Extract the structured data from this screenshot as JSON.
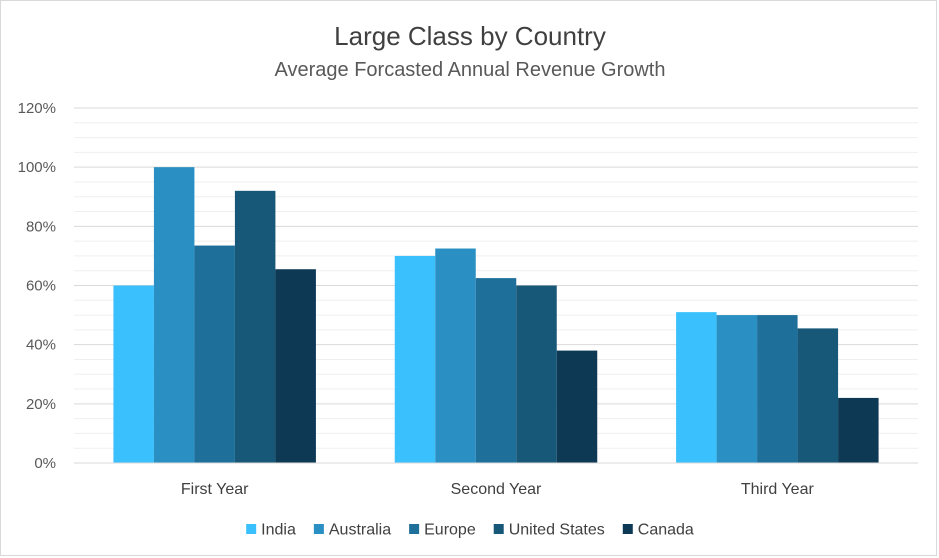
{
  "chart_data": {
    "type": "bar",
    "title": "Large Class by Country",
    "subtitle": "Average Forcasted Annual Revenue Growth",
    "categories": [
      "First Year",
      "Second Year",
      "Third Year"
    ],
    "series": [
      {
        "name": "India",
        "color": "#3ac1fd",
        "values": [
          60,
          70,
          51
        ]
      },
      {
        "name": "Australia",
        "color": "#2a8fc2",
        "values": [
          100,
          72.5,
          50
        ]
      },
      {
        "name": "Europe",
        "color": "#1f6f9b",
        "values": [
          73.5,
          62.5,
          50
        ]
      },
      {
        "name": "United States",
        "color": "#175778",
        "values": [
          92,
          60,
          45.5
        ]
      },
      {
        "name": "Canada",
        "color": "#0e3955",
        "values": [
          65.5,
          38,
          22
        ]
      }
    ],
    "ylim": [
      0,
      120
    ],
    "yticks": [
      "0%",
      "20%",
      "40%",
      "60%",
      "80%",
      "100%",
      "120%"
    ],
    "ytick_values": [
      0,
      20,
      40,
      60,
      80,
      100,
      120
    ],
    "minor_grid_step": 5,
    "grid": true,
    "legend": "bottom"
  }
}
